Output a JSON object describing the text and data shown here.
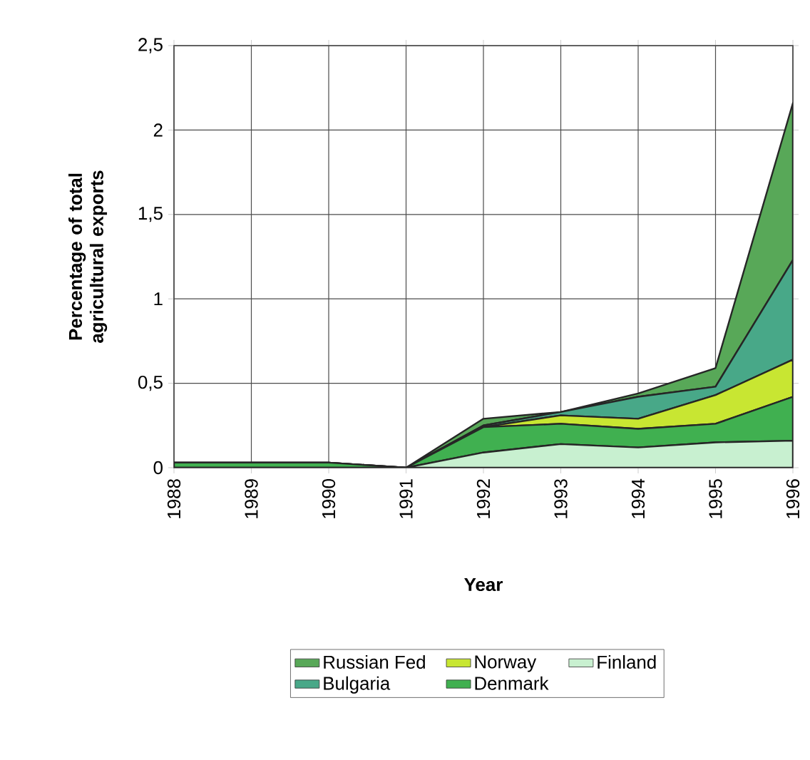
{
  "chart_data": {
    "type": "area",
    "stacked": true,
    "xlabel": "Year",
    "ylabel": "Percentage of total agricultural exports",
    "categories": [
      "1988",
      "1989",
      "1990",
      "1991",
      "1992",
      "1993",
      "1994",
      "1995",
      "1996"
    ],
    "ylim": [
      0,
      2.5
    ],
    "yticks": [
      0,
      {
        "value": 0.5,
        "label": "0,5"
      },
      1,
      {
        "value": 1.5,
        "label": "1,5"
      },
      2,
      {
        "value": 2.5,
        "label": "2,5"
      }
    ],
    "grid": true,
    "legend": "bottom",
    "series": [
      {
        "name": "Finland",
        "color": "#c8f0d0",
        "values": [
          0,
          0,
          0,
          0,
          0.09,
          0.14,
          0.12,
          0.15,
          0.16
        ]
      },
      {
        "name": "Denmark",
        "color": "#40b050",
        "values": [
          0.03,
          0.03,
          0.03,
          0,
          0.15,
          0.12,
          0.11,
          0.11,
          0.26
        ]
      },
      {
        "name": "Norway",
        "color": "#c8e632",
        "values": [
          0,
          0,
          0,
          0,
          0,
          0.05,
          0.06,
          0.17,
          0.22
        ]
      },
      {
        "name": "Bulgaria",
        "color": "#48a888",
        "values": [
          0,
          0,
          0,
          0,
          0.01,
          0.02,
          0.13,
          0.05,
          0.59
        ]
      },
      {
        "name": "Russian Fed",
        "color": "#58a858",
        "values": [
          0,
          0,
          0,
          0,
          0.04,
          0,
          0.02,
          0.11,
          0.93
        ]
      }
    ]
  }
}
